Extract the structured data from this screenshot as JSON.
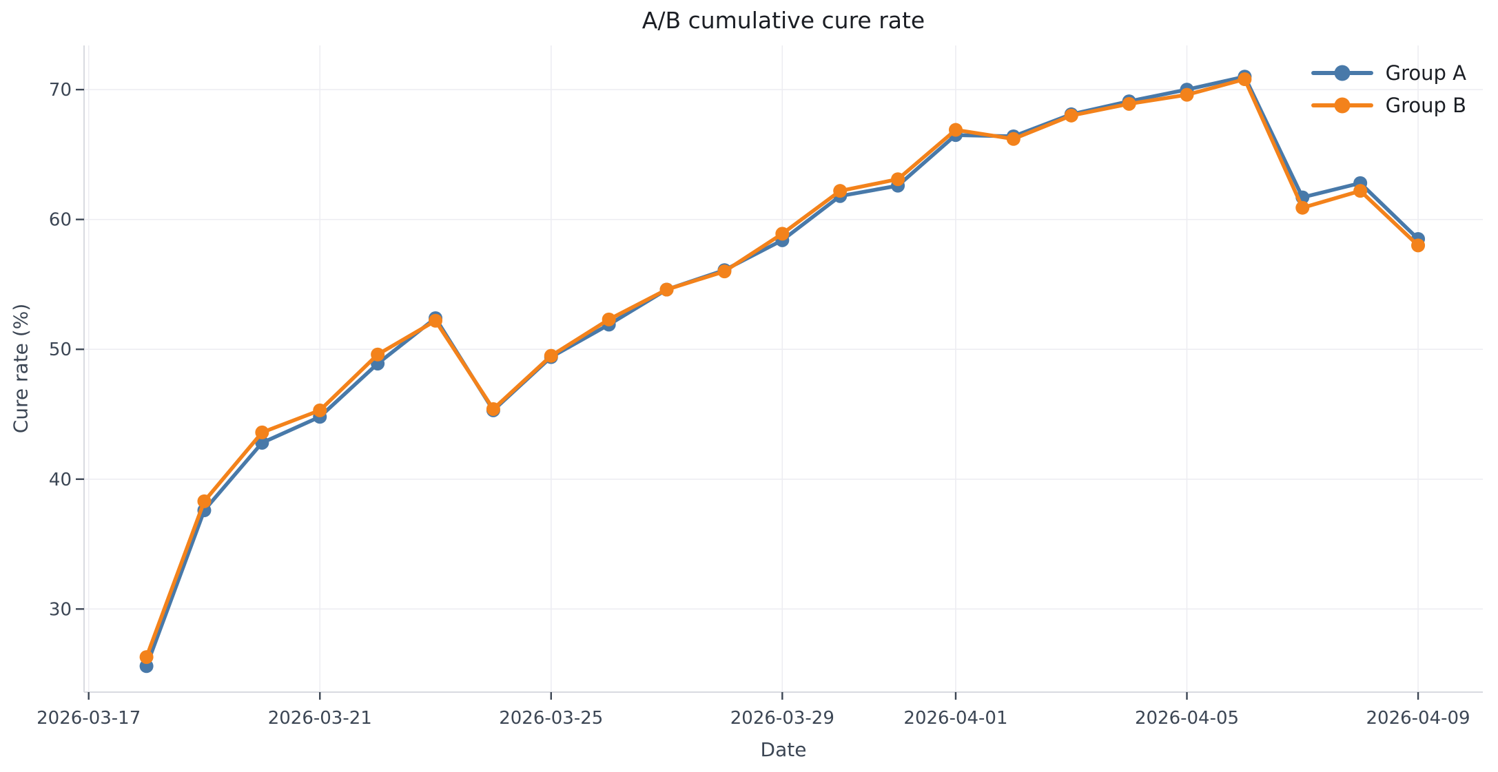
{
  "chart_data": {
    "type": "line",
    "title": "A/B cumulative cure rate",
    "xlabel": "Date",
    "ylabel": "Cure rate (%)",
    "x": [
      "2026-03-18",
      "2026-03-19",
      "2026-03-20",
      "2026-03-21",
      "2026-03-22",
      "2026-03-23",
      "2026-03-24",
      "2026-03-25",
      "2026-03-26",
      "2026-03-27",
      "2026-03-28",
      "2026-03-29",
      "2026-03-30",
      "2026-03-31",
      "2026-04-01",
      "2026-04-02",
      "2026-04-03",
      "2026-04-04",
      "2026-04-05",
      "2026-04-06",
      "2026-04-07",
      "2026-04-08",
      "2026-04-09"
    ],
    "series": [
      {
        "name": "Group A",
        "color": "#4879A9",
        "values": [
          25.6,
          37.6,
          42.8,
          44.8,
          48.9,
          52.4,
          45.3,
          49.4,
          51.9,
          54.6,
          56.1,
          58.4,
          61.8,
          62.6,
          66.5,
          66.4,
          68.1,
          69.1,
          70.0,
          71.0,
          61.7,
          62.8,
          58.5
        ]
      },
      {
        "name": "Group B",
        "color": "#F3821B",
        "values": [
          26.3,
          38.3,
          43.6,
          45.3,
          49.6,
          52.2,
          45.4,
          49.5,
          52.3,
          54.6,
          56.0,
          58.9,
          62.2,
          63.1,
          66.9,
          66.2,
          68.0,
          68.9,
          69.6,
          70.8,
          60.9,
          62.2,
          58.0
        ]
      }
    ],
    "x_ticks": [
      "2026-03-17",
      "2026-03-21",
      "2026-03-25",
      "2026-03-29",
      "2026-04-01",
      "2026-04-05",
      "2026-04-09"
    ],
    "y_ticks": [
      30,
      40,
      50,
      60,
      70
    ],
    "ylim": [
      23.6,
      73.4
    ],
    "xlim": [
      "2026-03-17",
      "2026-04-10"
    ],
    "grid": true,
    "legend_position": "upper right",
    "grid_color": "#EDEDF2",
    "spine_color": "#D8DAE0",
    "tick_text_color": "#3C4654"
  }
}
